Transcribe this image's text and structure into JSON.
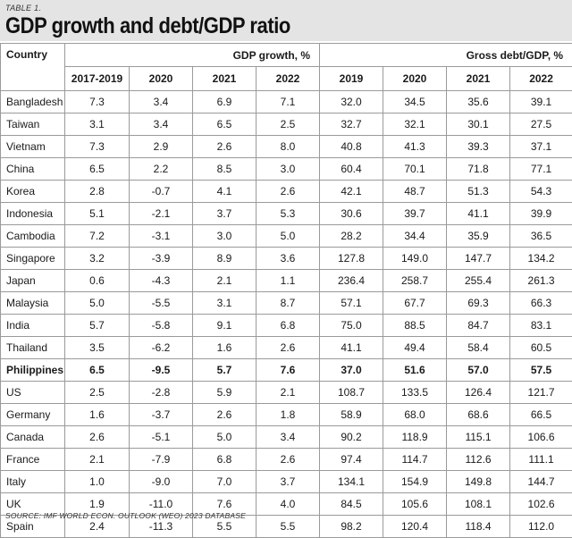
{
  "table_label": "TABLE 1.",
  "title": "GDP growth and debt/GDP ratio",
  "headers": {
    "country": "Country",
    "gdp_growth": "GDP growth, %",
    "gross_debt": "Gross debt/GDP, %",
    "gdp_years": [
      "2017-2019",
      "2020",
      "2021",
      "2022"
    ],
    "debt_years": [
      "2019",
      "2020",
      "2021",
      "2022"
    ]
  },
  "rows": [
    {
      "country": "Bangladesh",
      "values": [
        "7.3",
        "3.4",
        "6.9",
        "7.1",
        "32.0",
        "34.5",
        "35.6",
        "39.1"
      ]
    },
    {
      "country": "Taiwan",
      "values": [
        "3.1",
        "3.4",
        "6.5",
        "2.5",
        "32.7",
        "32.1",
        "30.1",
        "27.5"
      ]
    },
    {
      "country": "Vietnam",
      "values": [
        "7.3",
        "2.9",
        "2.6",
        "8.0",
        "40.8",
        "41.3",
        "39.3",
        "37.1"
      ]
    },
    {
      "country": "China",
      "values": [
        "6.5",
        "2.2",
        "8.5",
        "3.0",
        "60.4",
        "70.1",
        "71.8",
        "77.1"
      ]
    },
    {
      "country": "Korea",
      "values": [
        "2.8",
        "-0.7",
        "4.1",
        "2.6",
        "42.1",
        "48.7",
        "51.3",
        "54.3"
      ]
    },
    {
      "country": "Indonesia",
      "values": [
        "5.1",
        "-2.1",
        "3.7",
        "5.3",
        "30.6",
        "39.7",
        "41.1",
        "39.9"
      ]
    },
    {
      "country": "Cambodia",
      "values": [
        "7.2",
        "-3.1",
        "3.0",
        "5.0",
        "28.2",
        "34.4",
        "35.9",
        "36.5"
      ]
    },
    {
      "country": "Singapore",
      "values": [
        "3.2",
        "-3.9",
        "8.9",
        "3.6",
        "127.8",
        "149.0",
        "147.7",
        "134.2"
      ]
    },
    {
      "country": "Japan",
      "values": [
        "0.6",
        "-4.3",
        "2.1",
        "1.1",
        "236.4",
        "258.7",
        "255.4",
        "261.3"
      ]
    },
    {
      "country": "Malaysia",
      "values": [
        "5.0",
        "-5.5",
        "3.1",
        "8.7",
        "57.1",
        "67.7",
        "69.3",
        "66.3"
      ]
    },
    {
      "country": "India",
      "values": [
        "5.7",
        "-5.8",
        "9.1",
        "6.8",
        "75.0",
        "88.5",
        "84.7",
        "83.1"
      ]
    },
    {
      "country": "Thailand",
      "values": [
        "3.5",
        "-6.2",
        "1.6",
        "2.6",
        "41.1",
        "49.4",
        "58.4",
        "60.5"
      ]
    },
    {
      "country": "Philippines",
      "bold": true,
      "values": [
        "6.5",
        "-9.5",
        "5.7",
        "7.6",
        "37.0",
        "51.6",
        "57.0",
        "57.5"
      ]
    },
    {
      "country": "US",
      "values": [
        "2.5",
        "-2.8",
        "5.9",
        "2.1",
        "108.7",
        "133.5",
        "126.4",
        "121.7"
      ]
    },
    {
      "country": "Germany",
      "values": [
        "1.6",
        "-3.7",
        "2.6",
        "1.8",
        "58.9",
        "68.0",
        "68.6",
        "66.5"
      ]
    },
    {
      "country": "Canada",
      "values": [
        "2.6",
        "-5.1",
        "5.0",
        "3.4",
        "90.2",
        "118.9",
        "115.1",
        "106.6"
      ]
    },
    {
      "country": "France",
      "values": [
        "2.1",
        "-7.9",
        "6.8",
        "2.6",
        "97.4",
        "114.7",
        "112.6",
        "111.1"
      ]
    },
    {
      "country": "Italy",
      "values": [
        "1.0",
        "-9.0",
        "7.0",
        "3.7",
        "134.1",
        "154.9",
        "149.8",
        "144.7"
      ]
    },
    {
      "country": "UK",
      "values": [
        "1.9",
        "-11.0",
        "7.6",
        "4.0",
        "84.5",
        "105.6",
        "108.1",
        "102.6"
      ]
    },
    {
      "country": "Spain",
      "values": [
        "2.4",
        "-11.3",
        "5.5",
        "5.5",
        "98.2",
        "120.4",
        "118.4",
        "112.0"
      ]
    }
  ],
  "source": "SOURCE: IMF WORLD ECON. OUTLOOK (WEO) 2023 DATABASE",
  "colors": {
    "header_bg": "#e4e4e4",
    "border": "#9a9a9a"
  }
}
